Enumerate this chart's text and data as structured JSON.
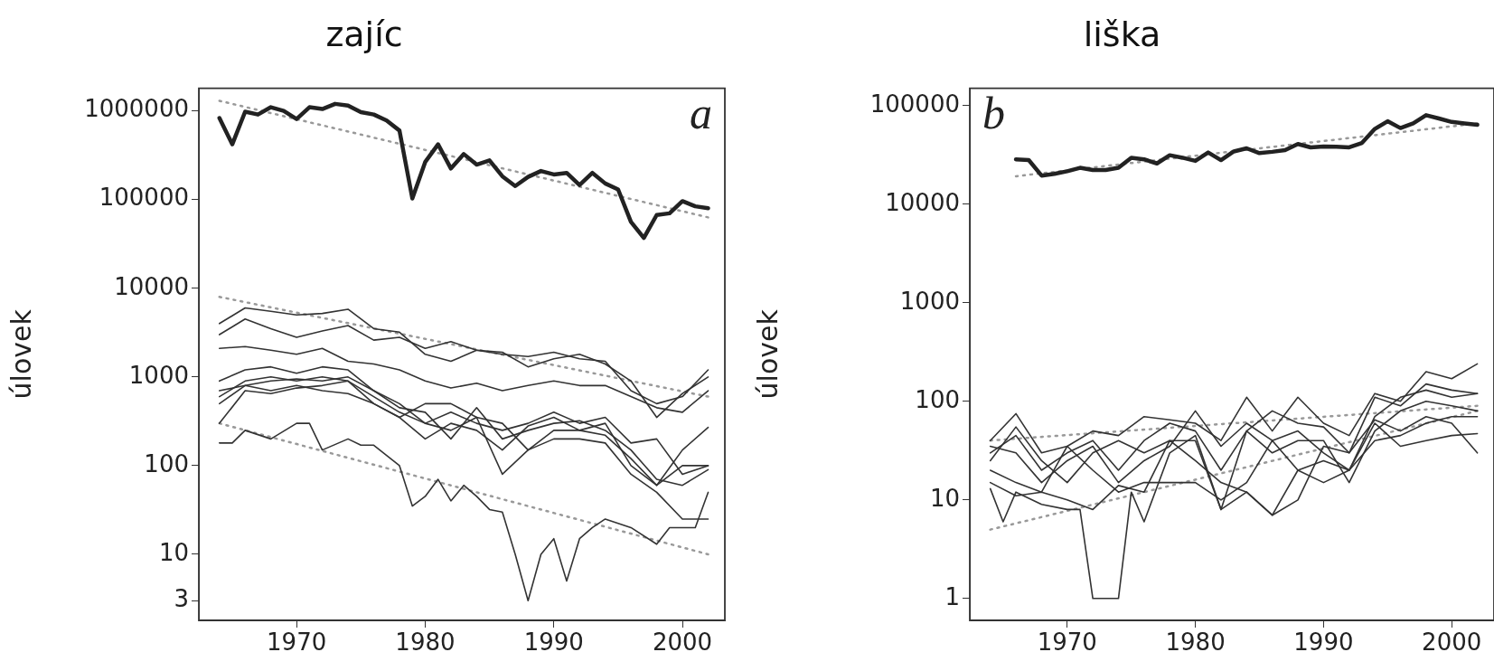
{
  "chart_data": [
    {
      "type": "line",
      "title": "zajíc",
      "ylabel": "úlovek",
      "annotations": [
        "a"
      ],
      "log": "y",
      "grid": false,
      "legend": false,
      "marker": "none",
      "line_style": "solid",
      "xlim": [
        1962.4,
        2003.3
      ],
      "xticks": [
        1970,
        1980,
        1990,
        2000
      ],
      "ylim": [
        1.8,
        1800000
      ],
      "yticks": [
        3,
        10,
        100,
        1000,
        10000,
        100000,
        1000000
      ],
      "series": [
        {
          "color": "#222222",
          "x": [
            1964,
            1965,
            1966,
            1967,
            1968,
            1969,
            1970,
            1971,
            1972,
            1973,
            1974,
            1975,
            1976,
            1977,
            1978,
            1979,
            1980,
            1981,
            1982,
            1983,
            1984,
            1985,
            1986,
            1987,
            1988,
            1989,
            1990,
            1991,
            1992,
            1993,
            1994,
            1995,
            1996,
            1997,
            1998,
            1999,
            2000,
            2001,
            2002
          ],
          "values": [
            830000,
            420000,
            980000,
            910000,
            1100000,
            1000000,
            810000,
            1100000,
            1050000,
            1200000,
            1150000,
            970000,
            910000,
            780000,
            600000,
            103000,
            265000,
            420000,
            224000,
            326000,
            248000,
            277000,
            183000,
            142000,
            180000,
            210000,
            192000,
            200000,
            146000,
            200000,
            152000,
            130000,
            56000,
            37000,
            67000,
            70000,
            96000,
            84000,
            80000
          ]
        },
        {
          "color": "#333333",
          "x": [
            1964,
            1966,
            1968,
            1970,
            1972,
            1974,
            1976,
            1978,
            1980,
            1982,
            1984,
            1986,
            1988,
            1990,
            1992,
            1994,
            1996,
            1998,
            2000,
            2002
          ],
          "values": [
            4000,
            6000,
            5500,
            5000,
            5200,
            5800,
            3500,
            3200,
            1800,
            1500,
            2000,
            1800,
            1700,
            1900,
            1600,
            1500,
            700,
            500,
            600,
            1200
          ]
        },
        {
          "color": "#333333",
          "x": [
            1964,
            1966,
            1968,
            1970,
            1972,
            1974,
            1976,
            1978,
            1980,
            1982,
            1984,
            1986,
            1988,
            1990,
            1992,
            1994,
            1996,
            1998,
            2000,
            2002
          ],
          "values": [
            3000,
            4500,
            3500,
            2800,
            3300,
            3800,
            2600,
            2800,
            2100,
            2500,
            2000,
            1900,
            1300,
            1600,
            1800,
            1400,
            900,
            350,
            650,
            1000
          ]
        },
        {
          "color": "#333333",
          "x": [
            1964,
            1966,
            1968,
            1970,
            1972,
            1974,
            1976,
            1978,
            1980,
            1982,
            1984,
            1986,
            1988,
            1990,
            1992,
            1994,
            1996,
            1998,
            2000,
            2002
          ],
          "values": [
            2100,
            2200,
            2000,
            1800,
            2100,
            1500,
            1400,
            1200,
            900,
            750,
            850,
            700,
            800,
            900,
            800,
            800,
            600,
            450,
            400,
            700
          ]
        },
        {
          "color": "#333333",
          "x": [
            1964,
            1966,
            1968,
            1970,
            1972,
            1974,
            1976,
            1978,
            1980,
            1982,
            1984,
            1986,
            1988,
            1990,
            1992,
            1994,
            1996,
            1998,
            2000,
            2002
          ],
          "values": [
            900,
            1200,
            1300,
            1100,
            1300,
            1200,
            700,
            500,
            300,
            400,
            300,
            250,
            300,
            400,
            300,
            350,
            180,
            200,
            80,
            100
          ]
        },
        {
          "color": "#333333",
          "x": [
            1964,
            1966,
            1968,
            1970,
            1972,
            1974,
            1976,
            1978,
            1980,
            1982,
            1984,
            1986,
            1988,
            1990,
            1992,
            1994,
            1996,
            1998,
            2000,
            2002
          ],
          "values": [
            600,
            900,
            1000,
            900,
            1000,
            900,
            500,
            350,
            200,
            300,
            250,
            150,
            280,
            350,
            250,
            300,
            100,
            60,
            100,
            100
          ]
        },
        {
          "color": "#333333",
          "x": [
            1964,
            1966,
            1968,
            1970,
            1972,
            1974,
            1976,
            1978,
            1980,
            1982,
            1984,
            1986,
            1988,
            1990,
            1992,
            1994,
            1996,
            1998,
            2000,
            2002
          ],
          "values": [
            700,
            800,
            900,
            950,
            900,
            1000,
            700,
            450,
            400,
            200,
            450,
            200,
            250,
            300,
            320,
            250,
            150,
            70,
            60,
            90
          ]
        },
        {
          "color": "#333333",
          "x": [
            1964,
            1966,
            1968,
            1970,
            1972,
            1974,
            1976,
            1978,
            1980,
            1982,
            1984,
            1986,
            1988,
            1990,
            1992,
            1994,
            1996,
            1998,
            2000,
            2002
          ],
          "values": [
            500,
            800,
            700,
            800,
            700,
            650,
            500,
            350,
            500,
            500,
            350,
            80,
            150,
            200,
            200,
            180,
            80,
            50,
            25,
            25
          ]
        },
        {
          "color": "#333333",
          "x": [
            1964,
            1966,
            1968,
            1970,
            1972,
            1974,
            1976,
            1978,
            1980,
            1982,
            1984,
            1986,
            1988,
            1990,
            1992,
            1994,
            1996,
            1998,
            2000,
            2002
          ],
          "values": [
            300,
            700,
            650,
            750,
            800,
            900,
            600,
            400,
            300,
            250,
            350,
            300,
            150,
            250,
            250,
            220,
            120,
            60,
            150,
            270
          ]
        },
        {
          "color": "#333333",
          "x": [
            1964,
            1965,
            1966,
            1968,
            1970,
            1971,
            1972,
            1974,
            1975,
            1976,
            1978,
            1979,
            1980,
            1981,
            1982,
            1983,
            1984,
            1985,
            1986,
            1987,
            1988,
            1989,
            1990,
            1991,
            1992,
            1993,
            1994,
            1996,
            1998,
            1999,
            2000,
            2001,
            2002
          ],
          "values": [
            180,
            180,
            250,
            200,
            300,
            300,
            150,
            200,
            170,
            170,
            100,
            35,
            45,
            70,
            40,
            60,
            45,
            32,
            30,
            10,
            3,
            10,
            15,
            5,
            15,
            20,
            25,
            20,
            13,
            20,
            20,
            20,
            50
          ]
        },
        {
          "type": "line",
          "color": "#999999",
          "line_style": "dotted",
          "x": [
            1964,
            2002
          ],
          "values": [
            1300000,
            63000
          ]
        },
        {
          "type": "line",
          "color": "#999999",
          "line_style": "dotted",
          "x": [
            1964,
            2002
          ],
          "values": [
            8000,
            600
          ]
        },
        {
          "type": "line",
          "color": "#999999",
          "line_style": "dotted",
          "x": [
            1964,
            2002
          ],
          "values": [
            300,
            10
          ]
        }
      ]
    },
    {
      "type": "line",
      "title": "liška",
      "ylabel": "úlovek",
      "annotations": [
        "b"
      ],
      "log": "y",
      "grid": false,
      "legend": false,
      "marker": "none",
      "line_style": "solid",
      "xlim": [
        1962.4,
        2003.3
      ],
      "xticks": [
        1970,
        1980,
        1990,
        2000
      ],
      "ylim": [
        0.63,
        150000
      ],
      "yticks": [
        1,
        10,
        100,
        1000,
        10000,
        100000
      ],
      "series": [
        {
          "color": "#222222",
          "x": [
            1966,
            1967,
            1968,
            1969,
            1970,
            1971,
            1972,
            1973,
            1974,
            1975,
            1976,
            1977,
            1978,
            1979,
            1980,
            1981,
            1982,
            1983,
            1984,
            1985,
            1986,
            1987,
            1988,
            1989,
            1990,
            1991,
            1992,
            1993,
            1994,
            1995,
            1996,
            1997,
            1998,
            1999,
            2000,
            2001,
            2002
          ],
          "values": [
            28500,
            28000,
            19500,
            20300,
            21600,
            23400,
            22200,
            22200,
            23400,
            29600,
            28500,
            25900,
            31400,
            29600,
            27500,
            33500,
            28000,
            34300,
            36900,
            33000,
            34000,
            35300,
            40800,
            37700,
            38500,
            38200,
            37700,
            41800,
            58000,
            69400,
            59200,
            66200,
            80000,
            74000,
            68300,
            66000,
            64000
          ]
        },
        {
          "color": "#333333",
          "x": [
            1964,
            1966,
            1968,
            1970,
            1972,
            1974,
            1976,
            1978,
            1980,
            1982,
            1984,
            1986,
            1988,
            1990,
            1992,
            1994,
            1996,
            1998,
            2000,
            2002
          ],
          "values": [
            40,
            75,
            30,
            35,
            50,
            45,
            70,
            65,
            60,
            40,
            110,
            50,
            110,
            60,
            45,
            120,
            100,
            200,
            170,
            240
          ]
        },
        {
          "color": "#333333",
          "x": [
            1964,
            1966,
            1968,
            1970,
            1972,
            1974,
            1976,
            1978,
            1980,
            1982,
            1984,
            1986,
            1988,
            1990,
            1992,
            1994,
            1996,
            1998,
            2000,
            2002
          ],
          "values": [
            30,
            45,
            20,
            30,
            40,
            20,
            40,
            60,
            50,
            20,
            50,
            80,
            60,
            55,
            30,
            110,
            90,
            150,
            130,
            120
          ]
        },
        {
          "color": "#333333",
          "x": [
            1964,
            1966,
            1968,
            1970,
            1972,
            1974,
            1976,
            1978,
            1980,
            1982,
            1984,
            1986,
            1988,
            1990,
            1992,
            1994,
            1996,
            1998,
            2000,
            2002
          ],
          "values": [
            35,
            30,
            15,
            25,
            35,
            15,
            25,
            35,
            80,
            35,
            60,
            40,
            50,
            30,
            20,
            70,
            110,
            130,
            110,
            120
          ]
        },
        {
          "color": "#333333",
          "x": [
            1964,
            1966,
            1968,
            1970,
            1972,
            1974,
            1976,
            1978,
            1980,
            1982,
            1984,
            1986,
            1988,
            1990,
            1992,
            1994,
            1996,
            1998,
            2000,
            2002
          ],
          "values": [
            25,
            55,
            25,
            15,
            30,
            40,
            30,
            40,
            40,
            8,
            50,
            30,
            40,
            40,
            15,
            50,
            80,
            100,
            90,
            80
          ]
        },
        {
          "color": "#333333",
          "x": [
            1964,
            1966,
            1968,
            1970,
            1972,
            1974,
            1976,
            1978,
            1980,
            1982,
            1984,
            1986,
            1988,
            1990,
            1992,
            1994,
            1996,
            1998,
            2000,
            2002
          ],
          "values": [
            20,
            15,
            12,
            35,
            20,
            12,
            15,
            15,
            15,
            10,
            15,
            40,
            20,
            15,
            20,
            40,
            45,
            60,
            70,
            70
          ]
        },
        {
          "color": "#333333",
          "x": [
            1964,
            1966,
            1968,
            1970,
            1972,
            1974,
            1976,
            1978,
            1980,
            1982,
            1984,
            1986,
            1988,
            1990,
            1992,
            1994,
            1996,
            1998,
            2000,
            2002
          ],
          "values": [
            15,
            11,
            12,
            10,
            8,
            14,
            12,
            40,
            25,
            15,
            12,
            7,
            10,
            35,
            30,
            65,
            50,
            70,
            60,
            30
          ]
        },
        {
          "color": "#333333",
          "x": [
            1964,
            1965,
            1966,
            1968,
            1970,
            1971,
            1972,
            1973,
            1974,
            1975,
            1976,
            1978,
            1980,
            1982,
            1984,
            1986,
            1988,
            1990,
            1992,
            1994,
            1996,
            1998,
            2000,
            2002
          ],
          "values": [
            13,
            6,
            12,
            9,
            8,
            8,
            1,
            1,
            1,
            12,
            6,
            30,
            45,
            8,
            12,
            7,
            20,
            25,
            20,
            60,
            35,
            40,
            45,
            47
          ]
        },
        {
          "type": "line",
          "color": "#999999",
          "line_style": "dotted",
          "x": [
            1966,
            2002
          ],
          "values": [
            19200,
            66000
          ]
        },
        {
          "type": "line",
          "color": "#999999",
          "line_style": "dotted",
          "x": [
            1964,
            2002
          ],
          "values": [
            5,
            80
          ]
        },
        {
          "type": "line",
          "color": "#999999",
          "line_style": "dotted",
          "x": [
            1964,
            2002
          ],
          "values": [
            40,
            90
          ]
        }
      ]
    }
  ]
}
